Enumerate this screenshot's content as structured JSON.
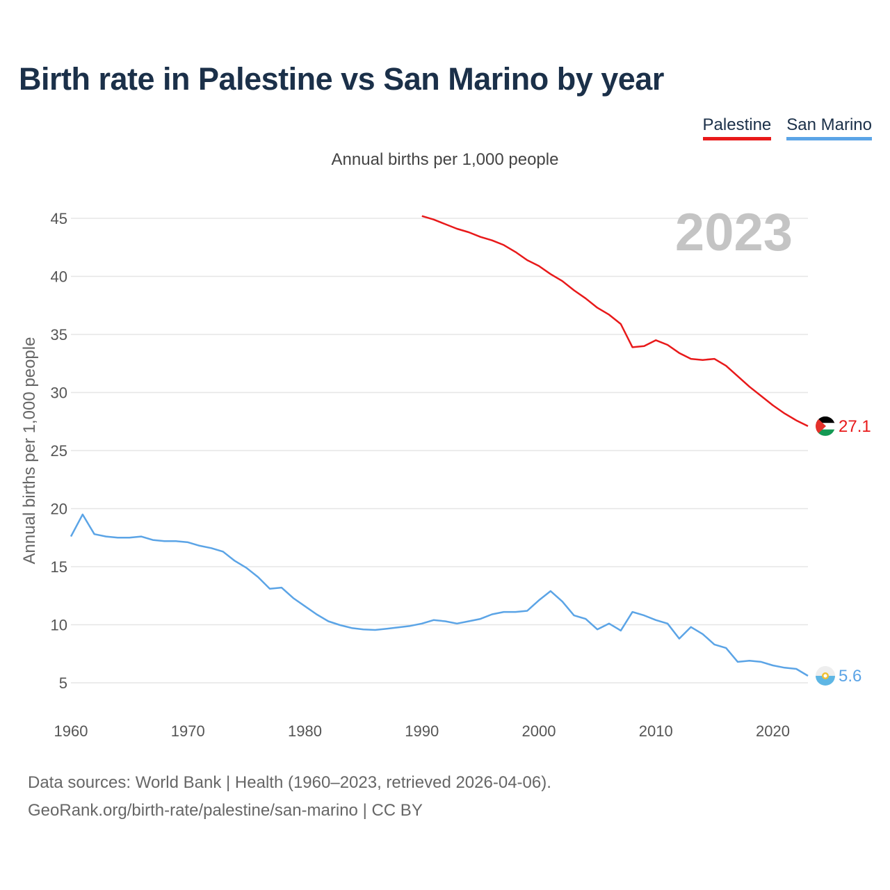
{
  "header": {
    "title": "Birth rate in Palestine vs San Marino by year"
  },
  "legend": {
    "palestine": "Palestine",
    "san_marino": "San Marino"
  },
  "subtitle": "Annual births per 1,000 people",
  "year_label": "2023",
  "colors": {
    "palestine": "#e8191a",
    "san_marino": "#5ba4e6",
    "title": "#1b3049",
    "grid": "#e6e6e6",
    "year": "#c4c4c4"
  },
  "footer": {
    "line1": "Data sources: World Bank | Health (1960–2023, retrieved 2026-04-06).",
    "line2": "GeoRank.org/birth-rate/palestine/san-marino | CC BY"
  },
  "chart_data": {
    "type": "line",
    "title": "Birth rate in Palestine vs San Marino by year",
    "xlabel": "",
    "ylabel": "Annual births per 1,000 people",
    "xlim": [
      1960,
      2023
    ],
    "ylim": [
      2,
      47
    ],
    "xticks": [
      1960,
      1970,
      1980,
      1990,
      2000,
      2010,
      2020
    ],
    "yticks": [
      5,
      10,
      15,
      20,
      25,
      30,
      35,
      40,
      45
    ],
    "grid": true,
    "series": [
      {
        "name": "Palestine",
        "end_label": "27.1",
        "x": [
          1990,
          1991,
          1992,
          1993,
          1994,
          1995,
          1996,
          1997,
          1998,
          1999,
          2000,
          2001,
          2002,
          2003,
          2004,
          2005,
          2006,
          2007,
          2008,
          2009,
          2010,
          2011,
          2012,
          2013,
          2014,
          2015,
          2016,
          2017,
          2018,
          2019,
          2020,
          2021,
          2022,
          2023
        ],
        "values": [
          45.2,
          44.9,
          44.5,
          44.1,
          43.8,
          43.4,
          43.1,
          42.7,
          42.1,
          41.4,
          40.9,
          40.2,
          39.6,
          38.8,
          38.1,
          37.3,
          36.7,
          35.9,
          33.9,
          34.0,
          34.5,
          34.1,
          33.4,
          32.9,
          32.8,
          32.9,
          32.3,
          31.4,
          30.5,
          29.7,
          28.9,
          28.2,
          27.6,
          27.1
        ]
      },
      {
        "name": "San Marino",
        "end_label": "5.6",
        "x": [
          1960,
          1961,
          1962,
          1963,
          1964,
          1965,
          1966,
          1967,
          1968,
          1969,
          1970,
          1971,
          1972,
          1973,
          1974,
          1975,
          1976,
          1977,
          1978,
          1979,
          1980,
          1981,
          1982,
          1983,
          1984,
          1985,
          1986,
          1987,
          1988,
          1989,
          1990,
          1991,
          1992,
          1993,
          1994,
          1995,
          1996,
          1997,
          1998,
          1999,
          2000,
          2001,
          2002,
          2003,
          2004,
          2005,
          2006,
          2007,
          2008,
          2009,
          2010,
          2011,
          2012,
          2013,
          2014,
          2015,
          2016,
          2017,
          2018,
          2019,
          2020,
          2021,
          2022,
          2023
        ],
        "values": [
          17.6,
          19.5,
          17.8,
          17.6,
          17.5,
          17.5,
          17.6,
          17.3,
          17.2,
          17.2,
          17.1,
          16.8,
          16.6,
          16.3,
          15.5,
          14.9,
          14.1,
          13.1,
          13.2,
          12.3,
          11.6,
          10.9,
          10.3,
          9.97,
          9.72,
          9.6,
          9.55,
          9.65,
          9.77,
          9.9,
          10.1,
          10.4,
          10.3,
          10.1,
          10.3,
          10.5,
          10.9,
          11.1,
          11.1,
          11.2,
          12.1,
          12.9,
          12.0,
          10.8,
          10.5,
          9.6,
          10.1,
          9.5,
          11.1,
          10.8,
          10.4,
          10.1,
          8.8,
          9.8,
          9.2,
          8.3,
          8.0,
          6.8,
          6.9,
          6.8,
          6.5,
          6.3,
          6.2,
          5.6
        ]
      }
    ]
  }
}
